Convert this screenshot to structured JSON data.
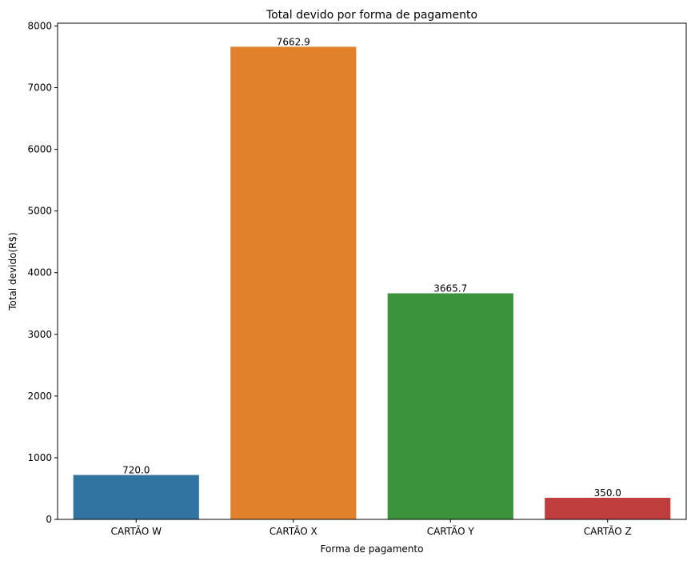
{
  "chart_data": {
    "type": "bar",
    "title": "Total devido por forma de pagamento",
    "xlabel": "Forma de pagamento",
    "ylabel": "Total devido(R$)",
    "categories": [
      "CARTÃO W",
      "CARTÃO X",
      "CARTÃO Y",
      "CARTÃO Z"
    ],
    "values": [
      720.0,
      7662.9,
      3665.7,
      350.0
    ],
    "data_labels": [
      "720.0",
      "7662.9",
      "3665.7",
      "350.0"
    ],
    "colors": [
      "#3274a1",
      "#e1812c",
      "#3a923a",
      "#c03d3e"
    ],
    "ylim": [
      0,
      8045
    ],
    "yticks": [
      0,
      1000,
      2000,
      3000,
      4000,
      5000,
      6000,
      7000,
      8000
    ],
    "grid": false,
    "legend": "none"
  }
}
